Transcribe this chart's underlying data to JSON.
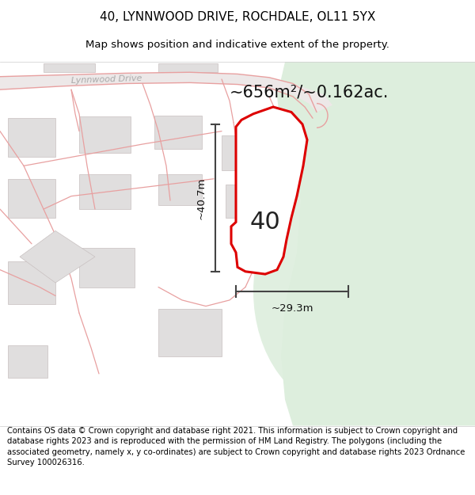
{
  "title": "40, LYNNWOOD DRIVE, ROCHDALE, OL11 5YX",
  "subtitle": "Map shows position and indicative extent of the property.",
  "footer": "Contains OS data © Crown copyright and database right 2021. This information is subject to Crown copyright and database rights 2023 and is reproduced with the permission of HM Land Registry. The polygons (including the associated geometry, namely x, y co-ordinates) are subject to Crown copyright and database rights 2023 Ordnance Survey 100026316.",
  "area_label": "~656m²/~0.162ac.",
  "width_label": "~29.3m",
  "height_label": "~40.7m",
  "plot_number": "40",
  "map_bg": "#f2efef",
  "green_area_color": "#ddeedd",
  "green_circle_color": "#ddeedd",
  "road_color": "#e8d8d8",
  "building_fill": "#e0dede",
  "building_edge": "#c8c0c0",
  "plot_fill": "#ffffff",
  "plot_outline": "#dd0000",
  "road_line_color": "#e8a0a0",
  "dim_line_color": "#444444",
  "street_label": "Lynnwood Drive",
  "title_fontsize": 11,
  "subtitle_fontsize": 9.5,
  "footer_fontsize": 7.2,
  "area_fontsize": 15,
  "plot_num_fontsize": 22,
  "dim_fontsize": 9.5,
  "street_fontsize": 8
}
